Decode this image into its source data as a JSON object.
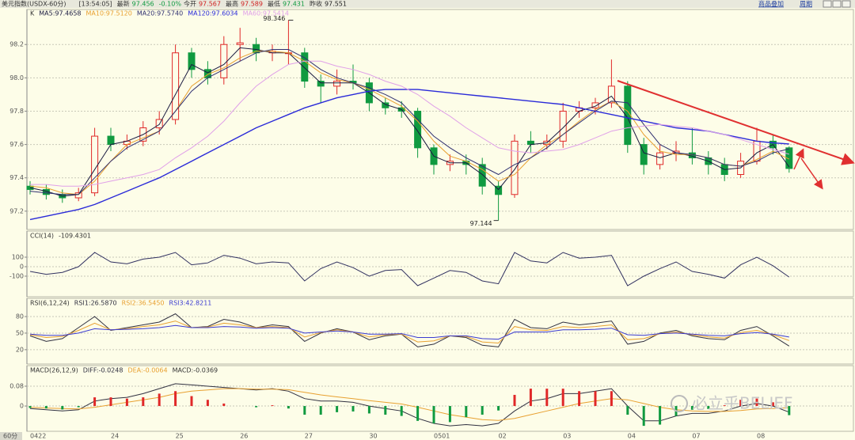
{
  "header": {
    "title": "美元指数(USDX-60分)",
    "time": "[13:54:05]",
    "quote": [
      {
        "label": "最新",
        "value": 97.456,
        "color": "#109a40"
      },
      {
        "label": "-0.10%",
        "color": "#109a40"
      },
      {
        "label": "今开",
        "value": 97.567,
        "color": "#d02020"
      },
      {
        "label": "最高",
        "value": 97.589,
        "color": "#d02020"
      },
      {
        "label": "最低",
        "value": 97.431,
        "color": "#109a40"
      },
      {
        "label": "昨收",
        "value": 97.551,
        "color": "#222222"
      }
    ],
    "links": [
      "商品叠加",
      "周期"
    ]
  },
  "period_label": "60分",
  "watermark": "必立乎BELIEF",
  "chart_data": [
    {
      "type": "candlestick",
      "title": "K",
      "categories": [
        "0422",
        null,
        null,
        null,
        null,
        "24",
        null,
        null,
        null,
        "25",
        null,
        null,
        null,
        "26",
        null,
        null,
        null,
        "27",
        null,
        null,
        null,
        "30",
        null,
        null,
        null,
        "0501",
        null,
        null,
        null,
        "02",
        null,
        null,
        null,
        "03",
        null,
        null,
        null,
        "04",
        null,
        null,
        null,
        "07",
        null,
        null,
        null,
        "08",
        null,
        null
      ],
      "open": [
        97.35,
        97.33,
        97.3,
        97.28,
        97.31,
        97.65,
        97.6,
        97.62,
        97.7,
        97.75,
        98.15,
        98.05,
        98.0,
        98.2,
        98.2,
        98.15,
        98.15,
        98.15,
        97.98,
        97.95,
        97.98,
        97.97,
        97.85,
        97.82,
        97.8,
        97.58,
        97.48,
        97.5,
        97.48,
        97.35,
        97.3,
        97.62,
        97.6,
        97.62,
        97.8,
        97.82,
        97.85,
        97.95,
        97.6,
        97.48,
        97.55,
        97.55,
        97.52,
        97.48,
        97.42,
        97.5,
        97.62,
        97.58
      ],
      "high": [
        97.38,
        97.36,
        97.33,
        97.34,
        97.7,
        97.7,
        97.66,
        97.74,
        97.8,
        98.2,
        98.18,
        98.1,
        98.25,
        98.3,
        98.24,
        98.2,
        98.346,
        98.18,
        98.02,
        98.05,
        98.08,
        98.0,
        97.88,
        97.86,
        97.82,
        97.6,
        97.54,
        97.54,
        97.52,
        97.38,
        97.66,
        97.68,
        97.66,
        97.85,
        97.86,
        97.88,
        98.11,
        97.98,
        97.64,
        97.6,
        97.62,
        97.7,
        97.56,
        97.52,
        97.55,
        97.7,
        97.66,
        97.589
      ],
      "low": [
        97.3,
        97.27,
        97.25,
        97.26,
        97.29,
        97.56,
        97.57,
        97.59,
        97.66,
        97.72,
        98.0,
        97.96,
        97.96,
        98.1,
        98.1,
        98.1,
        98.08,
        97.94,
        97.85,
        97.9,
        97.93,
        97.8,
        97.78,
        97.76,
        97.52,
        97.42,
        97.44,
        97.42,
        97.3,
        97.144,
        97.28,
        97.55,
        97.57,
        97.58,
        97.76,
        97.78,
        97.82,
        97.55,
        97.42,
        97.45,
        97.5,
        97.48,
        97.42,
        97.38,
        97.4,
        97.48,
        97.54,
        97.431
      ],
      "close": [
        97.33,
        97.3,
        97.28,
        97.31,
        97.65,
        97.6,
        97.62,
        97.7,
        97.75,
        98.15,
        98.05,
        98.0,
        98.2,
        98.21,
        98.15,
        98.16,
        98.15,
        97.98,
        97.95,
        97.98,
        97.97,
        97.85,
        97.82,
        97.8,
        97.58,
        97.48,
        97.5,
        97.48,
        97.35,
        97.3,
        97.62,
        97.6,
        97.62,
        97.8,
        97.82,
        97.85,
        97.95,
        97.6,
        97.48,
        97.55,
        97.56,
        97.52,
        97.48,
        97.42,
        97.5,
        97.62,
        97.58,
        97.456
      ],
      "colors": {
        "up": "#e02828",
        "down": "#109a40"
      },
      "series": [
        {
          "name": "MA5:97.4658",
          "color": "#1a1a40",
          "values": [
            97.34,
            97.32,
            97.29,
            97.3,
            97.45,
            97.6,
            97.62,
            97.66,
            97.72,
            97.9,
            98.08,
            98.03,
            98.08,
            98.18,
            98.17,
            98.15,
            98.15,
            98.06,
            97.97,
            97.97,
            97.97,
            97.91,
            97.84,
            97.81,
            97.68,
            97.53,
            97.49,
            97.49,
            97.42,
            97.33,
            97.45,
            97.6,
            97.61,
            97.7,
            97.8,
            97.83,
            97.89,
            97.76,
            97.55,
            97.52,
            97.55,
            97.53,
            97.5,
            97.45,
            97.46,
            97.55,
            97.6,
            97.4658
          ]
        },
        {
          "name": "MA10:97.5120",
          "color": "#e8a030",
          "values": [
            97.35,
            97.34,
            97.31,
            97.3,
            97.38,
            97.5,
            97.6,
            97.64,
            97.68,
            97.8,
            97.95,
            98.02,
            98.06,
            98.12,
            98.16,
            98.16,
            98.15,
            98.1,
            98.03,
            97.99,
            97.97,
            97.93,
            97.88,
            97.83,
            97.74,
            97.62,
            97.53,
            97.5,
            97.45,
            97.38,
            97.42,
            97.52,
            97.6,
            97.66,
            97.74,
            97.81,
            97.86,
            97.8,
            97.66,
            97.56,
            97.54,
            97.54,
            97.52,
            97.48,
            97.47,
            97.51,
            97.56,
            97.512
          ]
        },
        {
          "name": "MA20:97.5740",
          "color": "#303070",
          "values": [
            97.32,
            97.31,
            97.3,
            97.3,
            97.4,
            97.5,
            97.58,
            97.63,
            97.68,
            97.8,
            97.92,
            98.0,
            98.05,
            98.1,
            98.15,
            98.17,
            98.17,
            98.12,
            98.05,
            98.0,
            97.97,
            97.94,
            97.9,
            97.85,
            97.75,
            97.65,
            97.58,
            97.52,
            97.47,
            97.42,
            97.48,
            97.52,
            97.58,
            97.66,
            97.73,
            97.8,
            97.86,
            97.85,
            97.72,
            97.6,
            97.55,
            97.54,
            97.52,
            97.48,
            97.47,
            97.5,
            97.55,
            97.574
          ]
        },
        {
          "name": "MA120:97.6034",
          "color": "#2a2ad8",
          "values": [
            97.15,
            97.17,
            97.19,
            97.21,
            97.24,
            97.28,
            97.32,
            97.36,
            97.4,
            97.45,
            97.5,
            97.55,
            97.6,
            97.65,
            97.7,
            97.74,
            97.78,
            97.82,
            97.85,
            97.88,
            97.9,
            97.92,
            97.93,
            97.93,
            97.93,
            97.92,
            97.91,
            97.9,
            97.89,
            97.88,
            97.87,
            97.86,
            97.85,
            97.84,
            97.82,
            97.8,
            97.78,
            97.76,
            97.74,
            97.72,
            97.7,
            97.69,
            97.68,
            97.66,
            97.64,
            97.62,
            97.61,
            97.6034
          ]
        },
        {
          "name": "MA60:97.5414",
          "color": "#e0a0e8",
          "values": [
            97.36,
            97.36,
            97.35,
            97.35,
            97.36,
            97.38,
            97.4,
            97.42,
            97.45,
            97.52,
            97.58,
            97.65,
            97.74,
            97.85,
            97.95,
            98.02,
            98.08,
            98.1,
            98.1,
            98.07,
            98.05,
            98.02,
            97.98,
            97.95,
            97.9,
            97.83,
            97.77,
            97.7,
            97.64,
            97.58,
            97.56,
            97.55,
            97.56,
            97.57,
            97.6,
            97.64,
            97.68,
            97.7,
            97.71,
            97.72,
            97.71,
            97.7,
            97.68,
            97.66,
            97.63,
            97.6,
            97.57,
            97.5414
          ]
        }
      ],
      "ylim": [
        97.09,
        98.41
      ],
      "yticks": [
        97.2,
        97.4,
        97.6,
        97.8,
        {
          "value": 98,
          "label": "98.0"
        },
        98.2
      ],
      "grid": true
    },
    {
      "type": "line",
      "title": "CCI(14)",
      "color": "#303060",
      "values": [
        -50,
        -80,
        -60,
        0,
        150,
        50,
        30,
        80,
        100,
        150,
        20,
        40,
        120,
        90,
        30,
        50,
        40,
        -150,
        -20,
        50,
        -10,
        -100,
        -40,
        -30,
        -200,
        -120,
        -40,
        -60,
        -150,
        -180,
        150,
        60,
        40,
        150,
        90,
        100,
        120,
        -200,
        -100,
        -20,
        50,
        -50,
        -80,
        -120,
        20,
        100,
        10,
        -109.4301
      ],
      "ylim": [
        -317,
        375
      ],
      "yticks": [
        100,
        0,
        -100
      ],
      "grid": true
    },
    {
      "type": "line",
      "title": "RSI(6,12,24)",
      "series": [
        {
          "name": "RSI1:26.5870",
          "color": "#303040",
          "values": [
            45,
            35,
            40,
            60,
            80,
            55,
            60,
            65,
            70,
            85,
            60,
            62,
            75,
            70,
            60,
            65,
            62,
            35,
            50,
            58,
            52,
            38,
            45,
            48,
            25,
            30,
            45,
            42,
            28,
            25,
            75,
            60,
            58,
            70,
            65,
            68,
            72,
            30,
            35,
            50,
            55,
            45,
            40,
            38,
            55,
            62,
            45,
            26.587
          ]
        },
        {
          "name": "RSI2:36.5450",
          "color": "#e8a030",
          "values": [
            47,
            42,
            44,
            55,
            68,
            56,
            58,
            62,
            65,
            72,
            60,
            61,
            68,
            65,
            60,
            62,
            60,
            43,
            51,
            56,
            52,
            43,
            47,
            48,
            34,
            36,
            45,
            44,
            34,
            32,
            62,
            56,
            55,
            62,
            60,
            62,
            65,
            38,
            40,
            49,
            52,
            47,
            43,
            41,
            51,
            55,
            47,
            36.545
          ]
        },
        {
          "name": "RSI3:42.8211",
          "color": "#3a3ad0",
          "values": [
            48,
            46,
            46,
            50,
            58,
            56,
            57,
            58,
            60,
            64,
            60,
            60,
            62,
            61,
            59,
            60,
            59,
            50,
            52,
            54,
            52,
            48,
            48,
            49,
            42,
            42,
            45,
            45,
            40,
            39,
            52,
            52,
            52,
            56,
            56,
            57,
            59,
            47,
            46,
            49,
            50,
            48,
            46,
            45,
            49,
            51,
            48,
            42.8211
          ]
        }
      ],
      "ylim": [
        -6,
        113
      ],
      "yticks": [
        80,
        50,
        20
      ],
      "grid": true
    },
    {
      "type": "macd",
      "title": "MACD(26,12,9)",
      "colors": {
        "up": "#e02828",
        "down": "#109a40"
      },
      "series": [
        {
          "name": "DIFF:-0.0248",
          "color": "#303040",
          "style": "line",
          "values": [
            -0.01,
            -0.015,
            -0.02,
            -0.015,
            0.02,
            0.03,
            0.035,
            0.05,
            0.07,
            0.09,
            0.085,
            0.08,
            0.075,
            0.07,
            0.065,
            0.07,
            0.06,
            0.03,
            0.02,
            0.02,
            0.015,
            0,
            -0.01,
            -0.02,
            -0.05,
            -0.07,
            -0.08,
            -0.075,
            -0.08,
            -0.07,
            -0.02,
            0.02,
            0.03,
            0.05,
            0.05,
            0.06,
            0.07,
            0,
            -0.06,
            -0.06,
            -0.04,
            -0.03,
            -0.03,
            -0.02,
            0,
            0.01,
            0,
            -0.0248
          ]
        },
        {
          "name": "DEA:-0.0064",
          "color": "#e8a030",
          "style": "line",
          "values": [
            -0.005,
            -0.008,
            -0.01,
            -0.012,
            -0.005,
            0.005,
            0.015,
            0.025,
            0.035,
            0.05,
            0.06,
            0.065,
            0.07,
            0.07,
            0.068,
            0.068,
            0.066,
            0.055,
            0.045,
            0.037,
            0.03,
            0.022,
            0.015,
            0.008,
            -0.005,
            -0.02,
            -0.035,
            -0.045,
            -0.055,
            -0.058,
            -0.05,
            -0.035,
            -0.02,
            -0.005,
            0.01,
            0.02,
            0.03,
            0.025,
            0.01,
            -0.005,
            -0.015,
            -0.02,
            -0.022,
            -0.022,
            -0.018,
            -0.012,
            -0.01,
            -0.0064
          ]
        },
        {
          "name": "MACD:-0.0369",
          "style": "bar",
          "values": [
            -0.008,
            -0.01,
            -0.014,
            -0.005,
            0.035,
            0.035,
            0.03,
            0.035,
            0.05,
            0.06,
            0.04,
            0.025,
            0.01,
            0,
            -0.005,
            0.003,
            -0.01,
            -0.035,
            -0.035,
            -0.025,
            -0.022,
            -0.03,
            -0.035,
            -0.04,
            -0.06,
            -0.07,
            -0.065,
            -0.045,
            -0.035,
            -0.018,
            0.045,
            0.07,
            0.07,
            0.07,
            0.06,
            0.06,
            0.06,
            -0.035,
            -0.08,
            -0.075,
            -0.04,
            -0.015,
            -0.012,
            0.003,
            0.025,
            0.03,
            0.015,
            -0.0369
          ]
        }
      ],
      "ylim": [
        -0.102,
        0.163
      ],
      "yticks": [
        0.08,
        0
      ],
      "grid": true
    }
  ]
}
